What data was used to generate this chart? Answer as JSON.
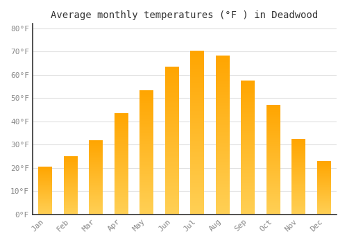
{
  "title": "Average monthly temperatures (°F ) in Deadwood",
  "months": [
    "Jan",
    "Feb",
    "Mar",
    "Apr",
    "May",
    "Jun",
    "Jul",
    "Aug",
    "Sep",
    "Oct",
    "Nov",
    "Dec"
  ],
  "values": [
    20.5,
    25.0,
    32.0,
    43.5,
    53.5,
    63.5,
    70.5,
    68.5,
    57.5,
    47.0,
    32.5,
    23.0
  ],
  "bar_color_bottom": "#FFD055",
  "bar_color_top": "#FFA500",
  "ylim": [
    0,
    82
  ],
  "yticks": [
    0,
    10,
    20,
    30,
    40,
    50,
    60,
    70,
    80
  ],
  "ytick_labels": [
    "0°F",
    "10°F",
    "20°F",
    "30°F",
    "40°F",
    "50°F",
    "60°F",
    "70°F",
    "80°F"
  ],
  "background_color": "#FFFFFF",
  "grid_color": "#E0E0E0",
  "title_fontsize": 10,
  "tick_fontsize": 8,
  "bar_width": 0.55,
  "n_gradient_steps": 100
}
